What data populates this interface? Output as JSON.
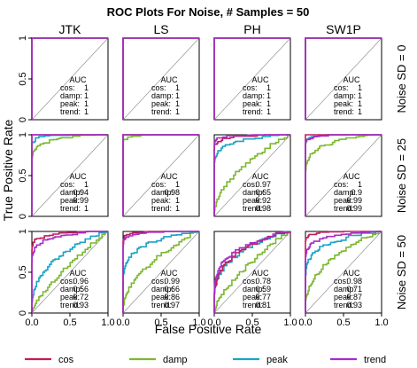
{
  "chart_data": {
    "type": "line",
    "title": "ROC Plots For Noise, # Samples = 50",
    "xlabel": "False Positive Rate",
    "ylabel": "True Positive Rate",
    "xlim": [
      0,
      1
    ],
    "ylim": [
      0,
      1
    ],
    "x_ticks": [
      "0.0",
      "0.5",
      "1.0"
    ],
    "y_ticks": [
      "0",
      "0.5",
      "1"
    ],
    "grid": false,
    "columns": [
      "JTK",
      "LS",
      "PH",
      "SW1P"
    ],
    "rows": [
      "Noise SD = 0",
      "Noise SD = 25",
      "Noise SD = 50"
    ],
    "auc_header": "AUC",
    "auc_labels": [
      "cos:",
      "damp:",
      "peak:",
      "trend:"
    ],
    "legend": [
      {
        "name": "cos",
        "color": "#c51b5a"
      },
      {
        "name": "damp",
        "color": "#7cb82f"
      },
      {
        "name": "peak",
        "color": "#1ba3c6"
      },
      {
        "name": "trend",
        "color": "#a52dc4"
      }
    ],
    "legend_position": "bottom",
    "panels": [
      [
        {
          "auc": [
            "1",
            "1",
            "1",
            "1"
          ],
          "curves": {
            "cos": 1,
            "damp": 1,
            "peak": 1,
            "trend": 1
          }
        },
        {
          "auc": [
            "1",
            "1",
            "1",
            "1"
          ],
          "curves": {
            "cos": 1,
            "damp": 1,
            "peak": 1,
            "trend": 1
          }
        },
        {
          "auc": [
            "1",
            "1",
            "1",
            "1"
          ],
          "curves": {
            "cos": 1,
            "damp": 1,
            "peak": 1,
            "trend": 1
          }
        },
        {
          "auc": [
            "1",
            "1",
            "1",
            "1"
          ],
          "curves": {
            "cos": 1,
            "damp": 1,
            "peak": 1,
            "trend": 1
          }
        }
      ],
      [
        {
          "auc": [
            "1",
            "0.94",
            "0.99",
            "1"
          ],
          "curves": {
            "cos": 1,
            "damp": 0.94,
            "peak": 0.99,
            "trend": 1
          }
        },
        {
          "auc": [
            "1",
            "0.98",
            "1",
            "1"
          ],
          "curves": {
            "cos": 1,
            "damp": 0.98,
            "peak": 1,
            "trend": 1
          }
        },
        {
          "auc": [
            "0.97",
            "0.65",
            "0.92",
            "0.98"
          ],
          "curves": {
            "cos": 0.97,
            "damp": 0.65,
            "peak": 0.92,
            "trend": 0.98
          }
        },
        {
          "auc": [
            "1",
            "0.9",
            "0.99",
            "0.99"
          ],
          "curves": {
            "cos": 1,
            "damp": 0.9,
            "peak": 0.99,
            "trend": 0.99
          }
        }
      ],
      [
        {
          "auc": [
            "0.96",
            "0.56",
            "0.72",
            "0.93"
          ],
          "curves": {
            "cos": 0.96,
            "damp": 0.56,
            "peak": 0.72,
            "trend": 0.93
          }
        },
        {
          "auc": [
            "0.99",
            "0.66",
            "0.86",
            "0.97"
          ],
          "curves": {
            "cos": 0.99,
            "damp": 0.66,
            "peak": 0.86,
            "trend": 0.97
          }
        },
        {
          "auc": [
            "0.78",
            "0.59",
            "0.77",
            "0.81"
          ],
          "curves": {
            "cos": 0.78,
            "damp": 0.59,
            "peak": 0.77,
            "trend": 0.81
          }
        },
        {
          "auc": [
            "0.98",
            "0.71",
            "0.87",
            "0.93"
          ],
          "curves": {
            "cos": 0.98,
            "damp": 0.71,
            "peak": 0.87,
            "trend": 0.93
          }
        }
      ]
    ]
  }
}
